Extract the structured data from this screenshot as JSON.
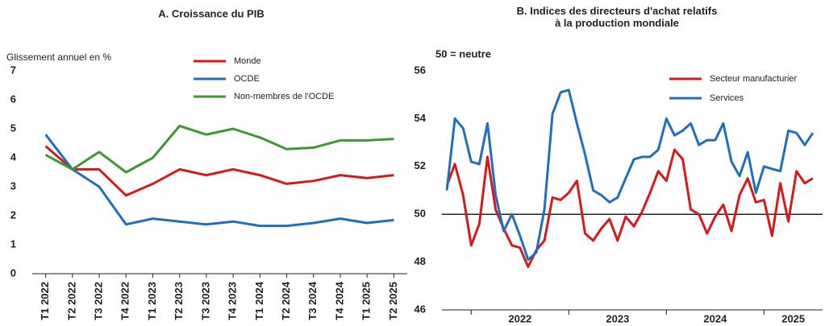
{
  "chart_data": [
    {
      "type": "line",
      "title": "A. Croissance du PIB",
      "ylabel": "Glissement annuel en %",
      "categories": [
        "T1 2022",
        "T2 2022",
        "T3 2022",
        "T4 2022",
        "T1 2023",
        "T2 2023",
        "T3 2023",
        "T4 2023",
        "T1 2024",
        "T2 2024",
        "T3 2024",
        "T4 2024",
        "T1 2025",
        "T2 2025"
      ],
      "series": [
        {
          "name": "Monde",
          "color": "#d7191c",
          "values": [
            4.4,
            3.6,
            3.6,
            2.7,
            3.1,
            3.6,
            3.4,
            3.6,
            3.4,
            3.1,
            3.2,
            3.4,
            3.3,
            3.4
          ]
        },
        {
          "name": "OCDE",
          "color": "#1f6fc0",
          "values": [
            4.8,
            3.6,
            3.0,
            1.7,
            1.9,
            1.8,
            1.7,
            1.8,
            1.65,
            1.65,
            1.75,
            1.9,
            1.75,
            1.85
          ]
        },
        {
          "name": "Non-membres de l'OCDE",
          "color": "#3a9a2e",
          "values": [
            4.1,
            3.6,
            4.2,
            3.5,
            4.0,
            5.1,
            4.8,
            5.0,
            4.7,
            4.3,
            4.35,
            4.6,
            4.6,
            4.65
          ]
        }
      ],
      "ylim": [
        0,
        7
      ],
      "yticks": [
        0,
        1,
        2,
        3,
        4,
        5,
        6,
        7
      ]
    },
    {
      "type": "line",
      "title": "B. Indices des directeurs d'achat relatifs à la production mondiale",
      "annotation": "50 = neutre",
      "x": [
        2021.75,
        2021.833,
        2021.917,
        2022.0,
        2022.083,
        2022.167,
        2022.25,
        2022.333,
        2022.417,
        2022.5,
        2022.583,
        2022.667,
        2022.75,
        2022.833,
        2022.917,
        2023.0,
        2023.083,
        2023.167,
        2023.25,
        2023.333,
        2023.417,
        2023.5,
        2023.583,
        2023.667,
        2023.75,
        2023.833,
        2023.917,
        2024.0,
        2024.083,
        2024.167,
        2024.25,
        2024.333,
        2024.417,
        2024.5,
        2024.583,
        2024.667,
        2024.75,
        2024.833,
        2024.917,
        2025.0,
        2025.083,
        2025.167,
        2025.25,
        2025.333,
        2025.417,
        2025.5
      ],
      "series": [
        {
          "name": "Secteur manufacturier",
          "color": "#d7191c",
          "values": [
            51.2,
            52.1,
            50.8,
            48.7,
            49.6,
            52.4,
            50.2,
            49.4,
            48.7,
            48.6,
            47.8,
            48.5,
            48.9,
            50.7,
            50.6,
            50.9,
            51.4,
            49.2,
            48.9,
            49.4,
            49.8,
            48.9,
            49.9,
            49.5,
            50.1,
            50.9,
            51.8,
            51.4,
            52.7,
            52.3,
            50.2,
            50.0,
            49.2,
            49.9,
            50.4,
            49.3,
            50.8,
            51.5,
            50.5,
            50.6,
            49.1,
            51.3,
            49.7,
            51.8,
            51.3,
            51.5
          ]
        },
        {
          "name": "Services",
          "color": "#1f6fc0",
          "values": [
            51.0,
            54.0,
            53.6,
            52.2,
            52.1,
            53.8,
            50.8,
            49.3,
            50.0,
            49.1,
            48.1,
            48.4,
            50.2,
            54.2,
            55.1,
            55.2,
            53.8,
            52.5,
            51.0,
            50.8,
            50.5,
            50.7,
            51.5,
            52.3,
            52.4,
            52.4,
            52.7,
            54.0,
            53.3,
            53.5,
            53.8,
            52.9,
            53.1,
            53.1,
            53.8,
            52.2,
            51.6,
            52.6,
            50.9,
            52.0,
            51.9,
            51.8,
            53.5,
            53.4,
            52.9,
            53.4
          ]
        }
      ],
      "xlim": [
        2021.7,
        2025.6
      ],
      "xticks": [
        {
          "value": 2022.5,
          "label": "2022"
        },
        {
          "value": 2023.5,
          "label": "2023"
        },
        {
          "value": 2024.5,
          "label": "2024"
        },
        {
          "value": 2025.3,
          "label": "2025"
        }
      ],
      "ylim": [
        46,
        56
      ],
      "yticks": [
        46,
        48,
        50,
        52,
        54,
        56
      ],
      "reference_line": 50
    }
  ]
}
